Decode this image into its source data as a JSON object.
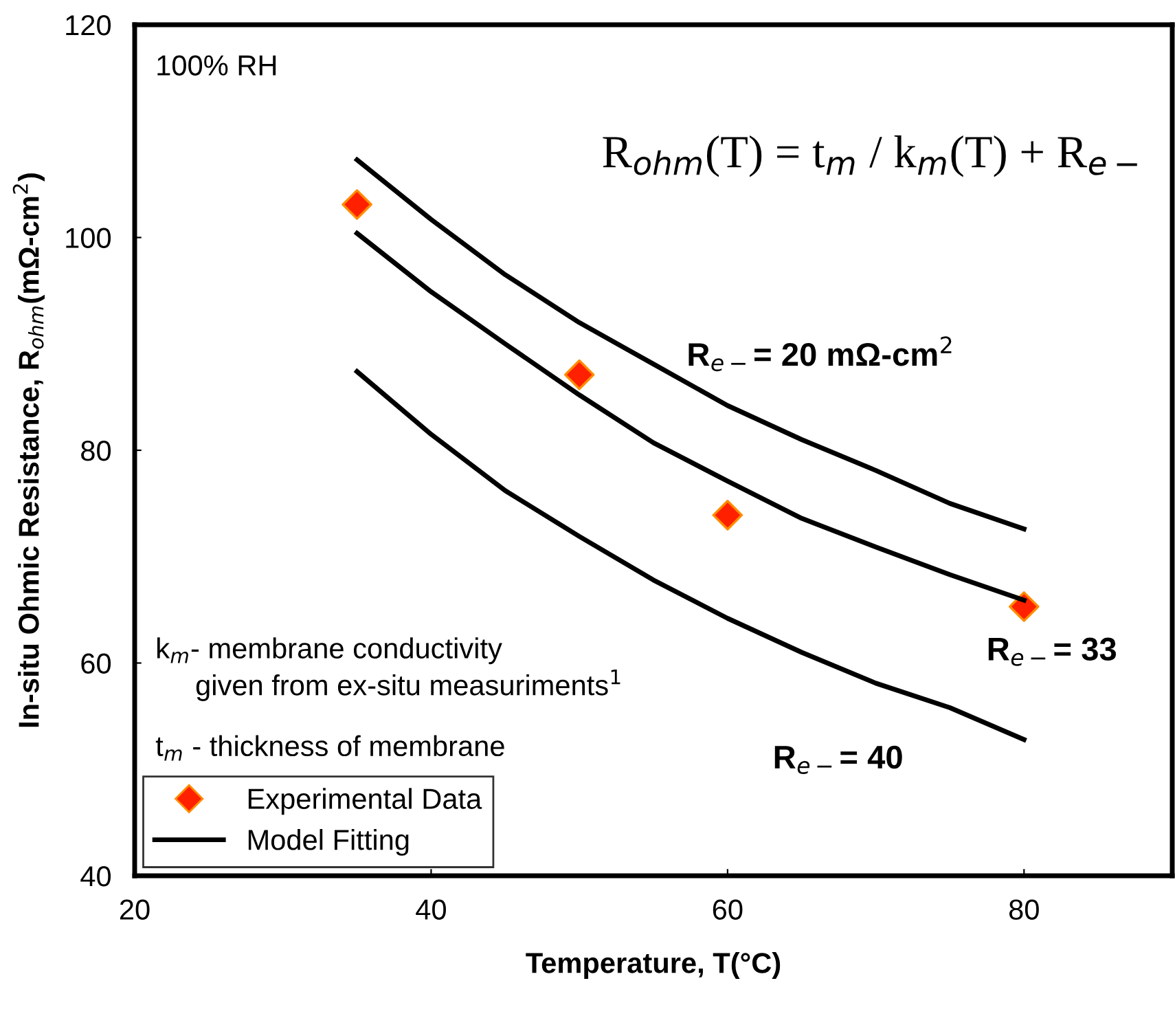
{
  "chart_data": {
    "type": "line",
    "xlabel": "Temperature, T(°C)",
    "ylabel": "In-situ Ohmic Resistance, R$_{ohm}$(mΩ-cm$^{2}$)",
    "xlim": [
      20,
      90
    ],
    "xticks": [
      20,
      40,
      60,
      80
    ],
    "ylim": [
      40,
      120
    ],
    "yticks": [
      40,
      60,
      80,
      100,
      120
    ],
    "grid": false,
    "legend": "bottom left",
    "series": [
      {
        "name": "Experimental Data",
        "type": "scatter",
        "marker": "diamond",
        "color": "#ff2000",
        "x": [
          35,
          50,
          60,
          80
        ],
        "values": [
          103.1,
          87.1,
          73.9,
          65.3
        ]
      },
      {
        "name": "Model Fitting",
        "marker": "none",
        "color": "#000000",
        "x": [
          35,
          40,
          45,
          50,
          55,
          60,
          65,
          70,
          75,
          80
        ],
        "values": [
          107.3,
          101.7,
          96.5,
          92.0,
          88.1,
          84.2,
          81.0,
          78.1,
          75.0,
          72.6
        ]
      },
      {
        "marker": "none",
        "color": "#000000",
        "x": [
          35,
          40,
          45,
          50,
          55,
          60,
          65,
          70,
          75,
          80
        ],
        "values": [
          100.4,
          94.9,
          90.0,
          85.2,
          80.7,
          77.1,
          73.6,
          70.9,
          68.3,
          65.9
        ]
      },
      {
        "marker": "none",
        "color": "#000000",
        "x": [
          35,
          40,
          45,
          50,
          55,
          60,
          65,
          70,
          75,
          80
        ],
        "values": [
          87.4,
          81.5,
          76.2,
          71.9,
          67.8,
          64.2,
          61.0,
          58.1,
          55.8,
          52.8
        ]
      }
    ],
    "annotations": [
      "R$_{e−}$= 20 mΩ-cm$^{2}$",
      "R$_{e−}$= 33",
      "R$_{e−}$= 40",
      "100% RH",
      "R$_{ohm}$(T) = t$_{m}$ / k$_{m}$(T) + R$_{e−}$",
      "k$_{m}$- membrane conductivity\n     given from ex-situ measuriments$^{1}$",
      "t$_{m}$ - thickness of membrane"
    ]
  }
}
